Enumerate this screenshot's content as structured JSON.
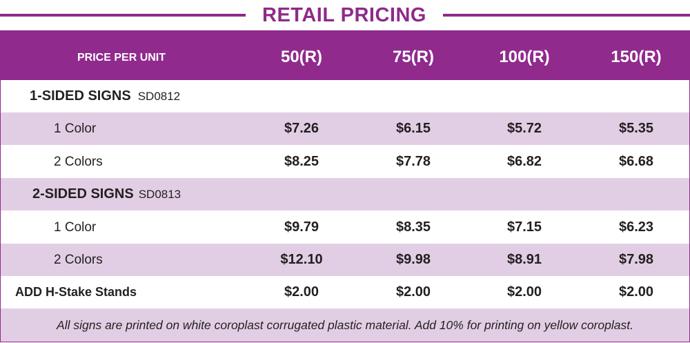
{
  "title": "RETAIL PRICING",
  "header": {
    "label": "PRICE PER UNIT",
    "columns": [
      "50(R)",
      "75(R)",
      "100(R)",
      "150(R)"
    ]
  },
  "sections": [
    {
      "name": "1-SIDED SIGNS",
      "code": "SD0812",
      "rows": [
        {
          "label": "1 Color",
          "prices": [
            "$7.26",
            "$6.15",
            "$5.72",
            "$5.35"
          ]
        },
        {
          "label": "2 Colors",
          "prices": [
            "$8.25",
            "$7.78",
            "$6.82",
            "$6.68"
          ]
        }
      ]
    },
    {
      "name": "2-SIDED SIGNS",
      "code": "SD0813",
      "rows": [
        {
          "label": "1 Color",
          "prices": [
            "$9.79",
            "$8.35",
            "$7.15",
            "$6.23"
          ]
        },
        {
          "label": "2 Colors",
          "prices": [
            "$12.10",
            "$9.98",
            "$8.91",
            "$7.98"
          ]
        }
      ]
    }
  ],
  "addon": {
    "label": "ADD H-Stake Stands",
    "prices": [
      "$2.00",
      "$2.00",
      "$2.00",
      "$2.00"
    ]
  },
  "note": "All signs are printed on white coroplast corrugated plastic material. Add 10% for printing on yellow coroplast.",
  "colors": {
    "brand_purple": "#902a8d",
    "row_shade": "#e2cee4",
    "text": "#231f20"
  }
}
